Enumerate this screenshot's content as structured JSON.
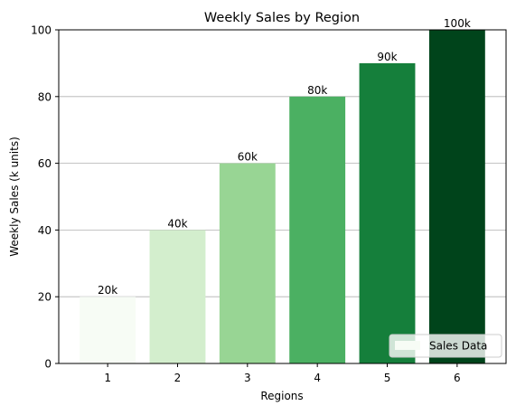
{
  "chart_data": {
    "type": "bar",
    "title": "Weekly Sales by Region",
    "xlabel": "Regions",
    "ylabel": "Weekly Sales (k units)",
    "categories": [
      "1",
      "2",
      "3",
      "4",
      "5",
      "6"
    ],
    "values": [
      20,
      40,
      60,
      80,
      90,
      100
    ],
    "data_labels": [
      "20k",
      "40k",
      "60k",
      "80k",
      "90k",
      "100k"
    ],
    "bar_colors": [
      "#f7fcf5",
      "#d3eecd",
      "#98d594",
      "#4bb062",
      "#157f3b",
      "#00441b"
    ],
    "ylim": [
      0,
      100
    ],
    "yticks": [
      0,
      20,
      40,
      60,
      80,
      100
    ],
    "grid": "horizontal",
    "legend": {
      "placement": "bottom-right",
      "entries": [
        {
          "label": "Sales Data",
          "color": "#f7fcf5"
        }
      ]
    }
  }
}
